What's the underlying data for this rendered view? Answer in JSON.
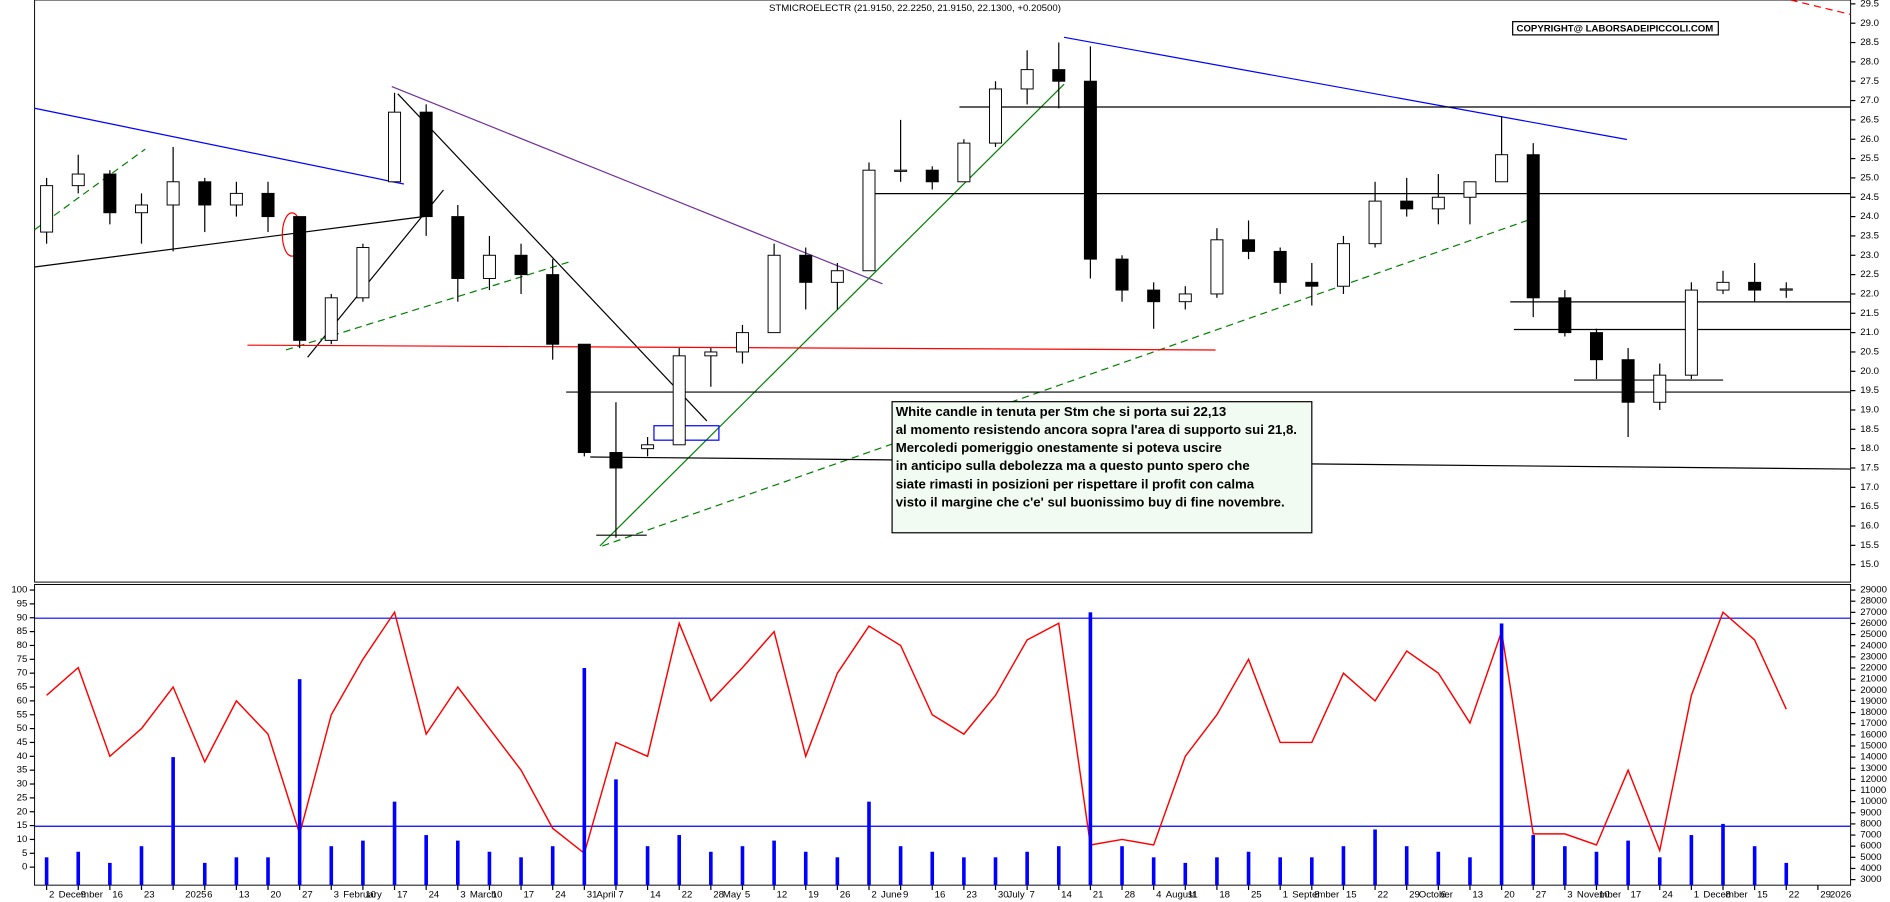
{
  "chart_data": [
    {
      "type": "candlestick",
      "title": "STMICROELECTR (21.9150, 22.2250, 21.9150, 22.1300, +0.20500)",
      "copyright": "COPYRIGHT@ LABORSADEIPICCOLI.COM",
      "annotation": [
        "White candle in tenuta per Stm che si porta sui 22,13",
        "al momento resistendo ancora sopra l'area di supporto sui 21,8.",
        "Mercoledi pomeriggio onestamente si poteva uscire",
        "in anticipo sulla debolezza ma a questo punto spero che",
        "siate rimasti in posizioni per rispettare il profit con calma",
        "visto il margine che c'e' sul buonissimo buy di fine novembre."
      ],
      "up_color": "#ffffff",
      "down_color": "#000000",
      "open": [
        23.6,
        24.8,
        25.1,
        24.1,
        24.3,
        24.9,
        24.3,
        24.6,
        24.0,
        20.8,
        21.9,
        24.9,
        26.7,
        24.0,
        22.4,
        23.0,
        22.5,
        20.7,
        17.9,
        18.0,
        18.1,
        20.4,
        20.5,
        21.0,
        23.0,
        22.3,
        22.6,
        25.2,
        25.2,
        24.9,
        25.9,
        27.3,
        27.8,
        27.5,
        22.9,
        22.1,
        21.8,
        22.0,
        23.4,
        23.1,
        22.3,
        22.2,
        23.3,
        24.4,
        24.2,
        24.5,
        24.9,
        25.6,
        21.9,
        21.0,
        20.3,
        19.2,
        19.9,
        22.1,
        22.3,
        22.1,
        null
      ],
      "high": [
        25.0,
        25.6,
        25.2,
        24.6,
        25.8,
        25.0,
        24.9,
        24.9,
        24.0,
        22.0,
        23.3,
        27.2,
        26.9,
        24.3,
        23.5,
        23.3,
        22.9,
        20.7,
        19.2,
        18.3,
        20.6,
        20.6,
        21.2,
        23.3,
        23.2,
        22.8,
        25.4,
        26.5,
        25.3,
        26.0,
        27.5,
        28.3,
        28.5,
        28.4,
        23.0,
        22.3,
        22.2,
        23.7,
        23.9,
        23.2,
        22.8,
        23.5,
        24.9,
        25.0,
        25.1,
        24.9,
        26.6,
        25.9,
        22.1,
        21.1,
        20.6,
        20.2,
        22.3,
        22.6,
        22.8,
        22.3,
        null
      ],
      "low": [
        23.3,
        24.6,
        23.8,
        23.3,
        23.1,
        23.6,
        24.0,
        23.6,
        20.6,
        20.7,
        21.8,
        24.9,
        23.5,
        21.8,
        22.1,
        22.0,
        20.3,
        17.8,
        15.7,
        17.8,
        18.1,
        19.6,
        20.2,
        21.0,
        21.6,
        21.6,
        22.6,
        24.9,
        24.7,
        24.9,
        25.8,
        26.9,
        26.8,
        22.4,
        21.8,
        21.1,
        21.6,
        21.9,
        22.9,
        22.0,
        21.7,
        22.0,
        23.2,
        24.0,
        23.8,
        23.8,
        24.9,
        21.4,
        20.9,
        19.8,
        18.3,
        19.0,
        19.8,
        22.0,
        21.8,
        21.9,
        null
      ],
      "close": [
        24.8,
        25.1,
        24.1,
        24.3,
        24.9,
        24.3,
        24.6,
        24.0,
        20.8,
        21.9,
        23.2,
        26.7,
        24.0,
        22.4,
        23.0,
        22.5,
        20.7,
        17.9,
        17.5,
        18.1,
        20.4,
        20.5,
        21.0,
        23.0,
        22.3,
        22.6,
        25.2,
        25.2,
        24.9,
        25.9,
        27.3,
        27.8,
        27.5,
        22.9,
        22.1,
        21.8,
        22.0,
        23.4,
        23.1,
        22.3,
        22.2,
        23.3,
        24.4,
        24.2,
        24.5,
        24.9,
        25.6,
        21.9,
        21.0,
        20.3,
        19.2,
        19.9,
        22.1,
        22.3,
        22.1,
        22.13,
        null
      ],
      "ylim": [
        14.55,
        29.6
      ],
      "yticks": [
        {
          "value": 15,
          "label": "15.0"
        },
        {
          "value": 15.5,
          "label": "15.5"
        },
        {
          "value": 16,
          "label": "16.0"
        },
        {
          "value": 16.5,
          "label": "16.5"
        },
        {
          "value": 17,
          "label": "17.0"
        },
        {
          "value": 17.5,
          "label": "17.5"
        },
        {
          "value": 18,
          "label": "18.0"
        },
        {
          "value": 18.5,
          "label": "18.5"
        },
        {
          "value": 19,
          "label": "19.0"
        },
        {
          "value": 19.5,
          "label": "19.5"
        },
        {
          "value": 20,
          "label": "20.0"
        },
        {
          "value": 20.5,
          "label": "20.5"
        },
        {
          "value": 21,
          "label": "21.0"
        },
        {
          "value": 21.5,
          "label": "21.5"
        },
        {
          "value": 22,
          "label": "22.0"
        },
        {
          "value": 22.5,
          "label": "22.5"
        },
        {
          "value": 23,
          "label": "23.0"
        },
        {
          "value": 23.5,
          "label": "23.5"
        },
        {
          "value": 24,
          "label": "24.0"
        },
        {
          "value": 24.5,
          "label": "24.5"
        },
        {
          "value": 25,
          "label": "25.0"
        },
        {
          "value": 25.5,
          "label": "25.5"
        },
        {
          "value": 26,
          "label": "26.0"
        },
        {
          "value": 26.5,
          "label": "26.5"
        },
        {
          "value": 27,
          "label": "27.0"
        },
        {
          "value": 27.5,
          "label": "27.5"
        },
        {
          "value": 28,
          "label": "28.0"
        },
        {
          "value": 28.5,
          "label": "28.5"
        },
        {
          "value": 29,
          "label": "29.0"
        },
        {
          "value": 29.5,
          "label": "29.5"
        }
      ]
    },
    {
      "type": "line",
      "categories": [
        "2",
        "9",
        "16",
        "23",
        null,
        "6",
        "13",
        "20",
        "27",
        "3",
        "10",
        "17",
        "24",
        "3",
        "10",
        "17",
        "24",
        "31",
        "7",
        "14",
        "22",
        "28",
        "5",
        "12",
        "19",
        "26",
        "2",
        "9",
        "16",
        "23",
        "30",
        "7",
        "14",
        "21",
        "28",
        "4",
        "11",
        "18",
        "25",
        "1",
        "8",
        "15",
        "22",
        "29",
        "6",
        "13",
        "20",
        "27",
        "3",
        "10",
        "17",
        "24",
        "1",
        "8",
        "15",
        "22",
        "29"
      ],
      "months": [
        {
          "label": "December",
          "start": 0
        },
        {
          "label": "2025",
          "start": 4
        },
        {
          "label": "February",
          "start": 9
        },
        {
          "label": "March",
          "start": 13
        },
        {
          "label": "April",
          "start": 17
        },
        {
          "label": "May",
          "start": 21
        },
        {
          "label": "June",
          "start": 26
        },
        {
          "label": "July",
          "start": 30
        },
        {
          "label": "August",
          "start": 35
        },
        {
          "label": "September",
          "start": 39
        },
        {
          "label": "October",
          "start": 43
        },
        {
          "label": "November",
          "start": 48
        },
        {
          "label": "December",
          "start": 52
        },
        {
          "label": "2026",
          "start": 56
        }
      ],
      "series": [
        {
          "color": "#ff0000",
          "values": [
            62,
            72,
            40,
            50,
            65,
            38,
            60,
            48,
            12,
            55,
            75,
            92,
            48,
            65,
            50,
            35,
            14,
            5,
            45,
            40,
            88,
            60,
            72,
            85,
            40,
            70,
            87,
            80,
            55,
            48,
            62,
            82,
            88,
            8,
            10,
            8,
            40,
            55,
            75,
            45,
            45,
            70,
            60,
            78,
            70,
            52,
            85,
            12,
            12,
            8,
            35,
            6,
            62,
            92,
            82,
            57,
            null
          ]
        },
        {
          "type": "bar",
          "axis": "y2",
          "color": "#0000ff",
          "values": [
            5000,
            5500,
            4500,
            6000,
            14000,
            4500,
            5000,
            5000,
            21000,
            6000,
            6500,
            10000,
            7000,
            6500,
            5500,
            5000,
            6000,
            22000,
            12000,
            6000,
            7000,
            5500,
            6000,
            6500,
            5500,
            5000,
            10000,
            6000,
            5500,
            5000,
            5000,
            5500,
            6000,
            27000,
            6000,
            5000,
            4500,
            5000,
            5500,
            5000,
            5000,
            6000,
            7500,
            6000,
            5500,
            5000,
            26000,
            7000,
            6000,
            5500,
            6500,
            5000,
            7000,
            8000,
            6000,
            4500,
            null
          ]
        }
      ],
      "ylim": [
        -6.5,
        102
      ],
      "yticks": [
        0,
        5,
        10,
        15,
        20,
        25,
        30,
        35,
        40,
        45,
        50,
        55,
        60,
        65,
        70,
        75,
        80,
        85,
        90,
        95,
        100
      ],
      "y2lim": [
        2500,
        29500
      ],
      "y2ticks": [
        3000,
        4000,
        5000,
        6000,
        7000,
        8000,
        9000,
        10000,
        11000,
        12000,
        13000,
        14000,
        15000,
        16000,
        17000,
        18000,
        19000,
        20000,
        21000,
        22000,
        23000,
        24000,
        25000,
        26000,
        27000,
        28000,
        29000
      ]
    }
  ]
}
